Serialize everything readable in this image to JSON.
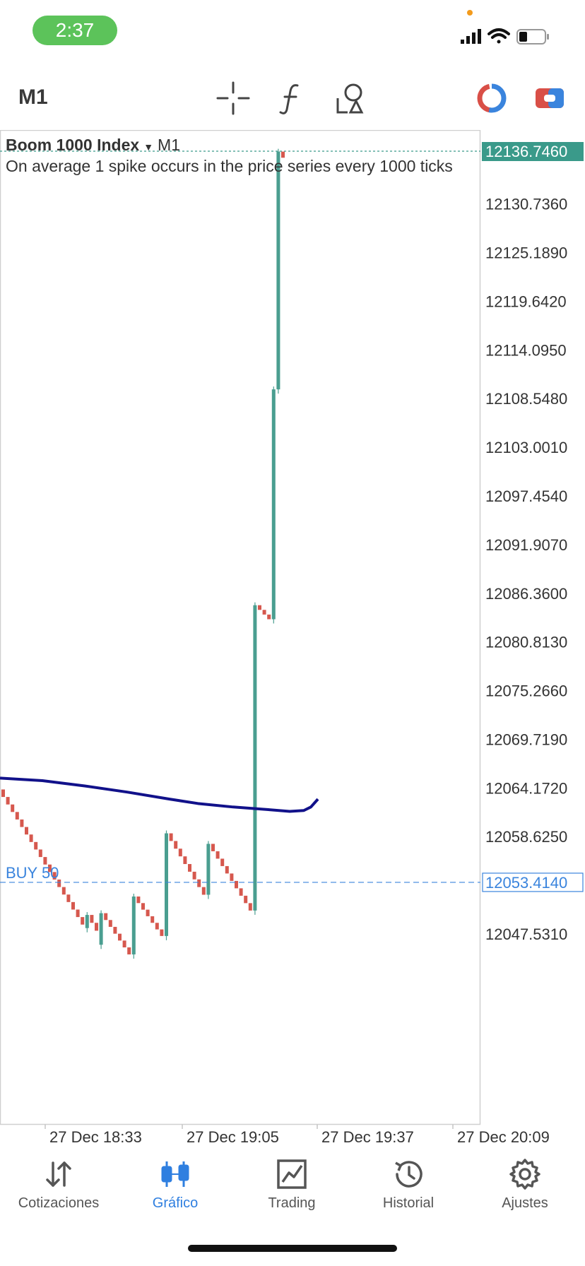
{
  "status_bar": {
    "time": "2:37",
    "pill_color": "#5cc35a"
  },
  "toolbar": {
    "timeframe": "M1",
    "icons": [
      "crosshair-icon",
      "function-icon",
      "objects-icon",
      "indicator-ring-icon",
      "account-icon"
    ]
  },
  "chart": {
    "symbol": "Boom 1000 Index",
    "timeframe": "M1",
    "description": "On average 1 spike occurs in the price series every 1000 ticks",
    "current_price": "12136.7460",
    "price_ticks": [
      "12130.7360",
      "12125.1890",
      "12119.6420",
      "12114.0950",
      "12108.5480",
      "12103.0010",
      "12097.4540",
      "12091.9070",
      "12086.3600",
      "12080.8130",
      "12075.2660",
      "12069.7190",
      "12064.1720",
      "12058.6250",
      "12047.5310"
    ],
    "time_ticks": [
      "27 Dec 18:33",
      "27 Dec 19:05",
      "27 Dec 19:37",
      "27 Dec 20:09"
    ],
    "order_line": {
      "label": "BUY 50",
      "price": "12053.4140"
    },
    "colors": {
      "bull": "#4a9e90",
      "bear": "#d6584e",
      "ma": "#11118a",
      "order": "#3a84dd",
      "current": "#3a9a8a"
    }
  },
  "chart_data": {
    "type": "candlestick",
    "y_range": [
      12042.0,
      12140.0
    ],
    "candles_summary": [
      {
        "segment": "decline",
        "from": 12064.0,
        "to": 12045.0
      },
      {
        "segment": "spike",
        "from": 12045.0,
        "to": 12059.0
      },
      {
        "segment": "decline",
        "from": 12059.0,
        "to": 12050.0
      },
      {
        "segment": "spike",
        "from": 12050.0,
        "to": 12085.0
      },
      {
        "segment": "spike",
        "from": 12083.0,
        "to": 12136.7
      }
    ]
  },
  "nav": {
    "items": [
      {
        "label": "Cotizaciones"
      },
      {
        "label": "Gráfico"
      },
      {
        "label": "Trading"
      },
      {
        "label": "Historial"
      },
      {
        "label": "Ajustes"
      }
    ]
  }
}
